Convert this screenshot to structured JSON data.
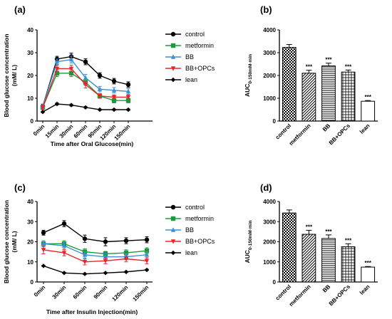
{
  "series_styles": [
    {
      "color": "#000000",
      "marker": "circle"
    },
    {
      "color": "#1a9a3a",
      "marker": "square"
    },
    {
      "color": "#3d8fd6",
      "marker": "triangle"
    },
    {
      "color": "#e8262a",
      "marker": "triangle-down"
    },
    {
      "color": "#000000",
      "marker": "diamond"
    }
  ],
  "chart_data": [
    {
      "panel": "(a)",
      "type": "line",
      "xlabel": "Time after Oral Glucose(min)",
      "ylabel": "Blood glucose concentration (mM/ L)",
      "ylim": [
        0,
        40
      ],
      "yticks": [
        "0",
        "10",
        "20",
        "30",
        "40"
      ],
      "categories": [
        "0min",
        "15min",
        "30min",
        "60min",
        "90min",
        "120min",
        "150min"
      ],
      "legend_position": "right",
      "series": [
        {
          "name": "control",
          "values": [
            6.5,
            27.2,
            28.3,
            26.0,
            20.0,
            17.5,
            16.0
          ],
          "err": [
            1.0,
            1.2,
            1.5,
            1.3,
            1.2,
            1.2,
            1.2
          ]
        },
        {
          "name": "metformin",
          "values": [
            6.0,
            21.0,
            21.0,
            17.0,
            11.0,
            9.0,
            9.0
          ],
          "err": [
            1.0,
            1.5,
            1.5,
            1.2,
            1.0,
            1.0,
            1.0
          ]
        },
        {
          "name": "BB",
          "values": [
            6.5,
            26.0,
            27.0,
            19.0,
            14.0,
            13.5,
            13.0
          ],
          "err": [
            1.0,
            1.2,
            1.5,
            1.5,
            1.2,
            1.2,
            1.2
          ]
        },
        {
          "name": "BB+OPCs",
          "values": [
            6.0,
            23.0,
            23.0,
            16.0,
            11.0,
            10.5,
            10.5
          ],
          "err": [
            1.0,
            1.5,
            1.5,
            1.5,
            1.0,
            1.0,
            1.0
          ]
        },
        {
          "name": "lean",
          "values": [
            4.0,
            7.5,
            7.0,
            6.0,
            5.0,
            5.0,
            5.0
          ],
          "err": [
            0.3,
            0.4,
            0.4,
            0.3,
            0.3,
            0.3,
            0.3
          ]
        }
      ]
    },
    {
      "panel": "(b)",
      "type": "bar",
      "ylabel": "AUC0-150mM·min",
      "ylim": [
        0,
        4000
      ],
      "yticks": [
        "0",
        "1000",
        "2000",
        "3000",
        "4000"
      ],
      "categories": [
        "control",
        "metformin",
        "BB",
        "BB+OPCs",
        "lean"
      ],
      "values": [
        3230,
        2100,
        2420,
        2150,
        870
      ],
      "err": [
        130,
        130,
        120,
        90,
        30
      ],
      "annotations": [
        "",
        "***",
        "***",
        "***",
        "***"
      ]
    },
    {
      "panel": "(c)",
      "type": "line",
      "xlabel": "Time after Insulin Injection(min)",
      "ylabel": "Blood glucose concentration (mM/ L)",
      "ylim": [
        0,
        40
      ],
      "yticks": [
        "0",
        "10",
        "20",
        "30",
        "40"
      ],
      "categories": [
        "0min",
        "30min",
        "60min",
        "90min",
        "120min",
        "150min"
      ],
      "legend_position": "right",
      "series": [
        {
          "name": "control",
          "values": [
            24.5,
            29.0,
            21.5,
            20.0,
            20.5,
            21.0
          ],
          "err": [
            1.2,
            1.5,
            1.8,
            2.0,
            1.5,
            1.5
          ]
        },
        {
          "name": "metformin",
          "values": [
            19.0,
            19.0,
            15.0,
            14.0,
            14.5,
            15.5
          ],
          "err": [
            1.5,
            1.5,
            1.5,
            1.2,
            1.5,
            1.5
          ]
        },
        {
          "name": "BB",
          "values": [
            19.0,
            18.0,
            13.5,
            12.5,
            12.5,
            13.5
          ],
          "err": [
            1.5,
            1.5,
            1.5,
            1.5,
            1.5,
            1.5
          ]
        },
        {
          "name": "BB+OPCs",
          "values": [
            16.0,
            14.5,
            10.0,
            10.5,
            11.5,
            10.5
          ],
          "err": [
            2.0,
            1.5,
            1.5,
            1.5,
            1.5,
            1.5
          ]
        },
        {
          "name": "lean",
          "values": [
            8.0,
            4.5,
            4.0,
            4.5,
            5.0,
            6.0
          ],
          "err": [
            0.3,
            0.3,
            0.3,
            0.3,
            0.3,
            0.3
          ]
        }
      ]
    },
    {
      "panel": "(d)",
      "type": "bar",
      "ylabel": "AUC0-150mM·min",
      "ylim": [
        0,
        4000
      ],
      "yticks": [
        "0",
        "1000",
        "2000",
        "3000",
        "4000"
      ],
      "categories": [
        "control",
        "metformin",
        "BB",
        "BB+OPCs",
        "lean"
      ],
      "values": [
        3430,
        2370,
        2160,
        1750,
        740
      ],
      "err": [
        150,
        200,
        180,
        150,
        30
      ],
      "annotations": [
        "",
        "***",
        "***",
        "***",
        "***"
      ]
    }
  ]
}
